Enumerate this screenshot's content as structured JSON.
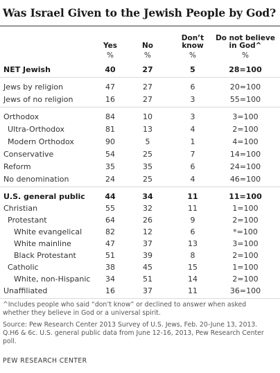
{
  "title": "Was Israel Given to the Jewish People by God?",
  "columns": {
    "yes": "Yes",
    "no": "No",
    "dont_know_1": "Don’t",
    "dont_know_2": "know",
    "do_not_believe_1": "Do not believe",
    "do_not_believe_2": "in God^",
    "unit_yes": "%",
    "unit_no": "%",
    "unit_dk": "%",
    "unit_dnb": "%"
  },
  "rows": [
    {
      "label": "NET Jewish",
      "yes": "40",
      "no": "27",
      "dk": "5",
      "dnb": "28=100"
    },
    {
      "label": "Jews by religion",
      "yes": "47",
      "no": "27",
      "dk": "6",
      "dnb": "20=100"
    },
    {
      "label": "Jews of no religion",
      "yes": "16",
      "no": "27",
      "dk": "3",
      "dnb": "55=100"
    },
    {
      "label": "Orthodox",
      "yes": "84",
      "no": "10",
      "dk": "3",
      "dnb": "3=100"
    },
    {
      "label": "Ultra-Orthodox",
      "yes": "81",
      "no": "13",
      "dk": "4",
      "dnb": "2=100"
    },
    {
      "label": "Modern Orthodox",
      "yes": "90",
      "no": "5",
      "dk": "1",
      "dnb": "4=100"
    },
    {
      "label": "Conservative",
      "yes": "54",
      "no": "25",
      "dk": "7",
      "dnb": "14=100"
    },
    {
      "label": "Reform",
      "yes": "35",
      "no": "35",
      "dk": "6",
      "dnb": "24=100"
    },
    {
      "label": "No denomination",
      "yes": "24",
      "no": "25",
      "dk": "4",
      "dnb": "46=100"
    },
    {
      "label": "U.S. general public",
      "yes": "44",
      "no": "34",
      "dk": "11",
      "dnb": "11=100"
    },
    {
      "label": "Christian",
      "yes": "55",
      "no": "32",
      "dk": "11",
      "dnb": "1=100"
    },
    {
      "label": "Protestant",
      "yes": "64",
      "no": "26",
      "dk": "9",
      "dnb": "2=100"
    },
    {
      "label": "White evangelical",
      "yes": "82",
      "no": "12",
      "dk": "6",
      "dnb": "*=100"
    },
    {
      "label": "White mainline",
      "yes": "47",
      "no": "37",
      "dk": "13",
      "dnb": "3=100"
    },
    {
      "label": "Black Protestant",
      "yes": "51",
      "no": "39",
      "dk": "8",
      "dnb": "2=100"
    },
    {
      "label": "Catholic",
      "yes": "38",
      "no": "45",
      "dk": "15",
      "dnb": "1=100"
    },
    {
      "label": "White, non-Hispanic",
      "yes": "34",
      "no": "51",
      "dk": "14",
      "dnb": "2=100"
    },
    {
      "label": "Unaffiliated",
      "yes": "16",
      "no": "37",
      "dk": "11",
      "dnb": "36=100"
    }
  ],
  "footnote": "^Includes people who said “don’t know” or declined to answer when asked whether they believe in God or a universal spirit.",
  "source": "Source: Pew Research Center 2013 Survey of U.S. Jews, Feb. 20-June 13, 2013. Q.H6 & 6c. U.S. general public data from June 12-16, 2013, Pew Research Center poll.",
  "brand": "PEW RESEARCH CENTER"
}
